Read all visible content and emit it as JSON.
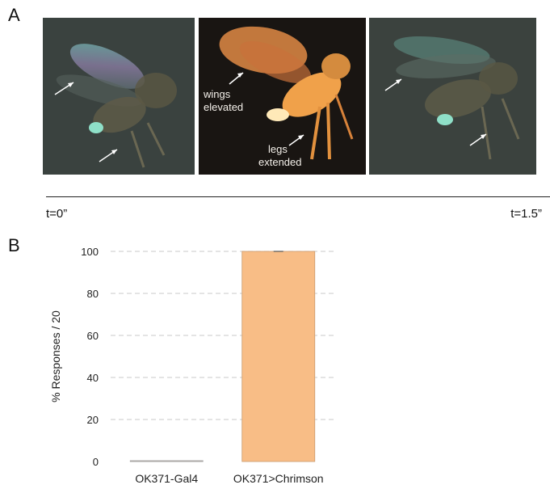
{
  "panel_a": {
    "letter": "A",
    "annotations": {
      "wings": [
        "wings",
        "elevated"
      ],
      "legs": [
        "legs",
        "extended"
      ]
    },
    "time_start": "t=0”",
    "time_end": "t=1.5”"
  },
  "panel_b": {
    "letter": "B"
  },
  "chart_data": {
    "type": "bar",
    "categories": [
      "OK371-Gal4",
      "OK371>Chrimson"
    ],
    "values": [
      0,
      100
    ],
    "ylabel": "% Responses / 20",
    "ylim": [
      0,
      100
    ],
    "yticks": [
      0,
      20,
      40,
      60,
      80,
      100
    ],
    "grid": true,
    "bar_color": "#f8bd86"
  }
}
